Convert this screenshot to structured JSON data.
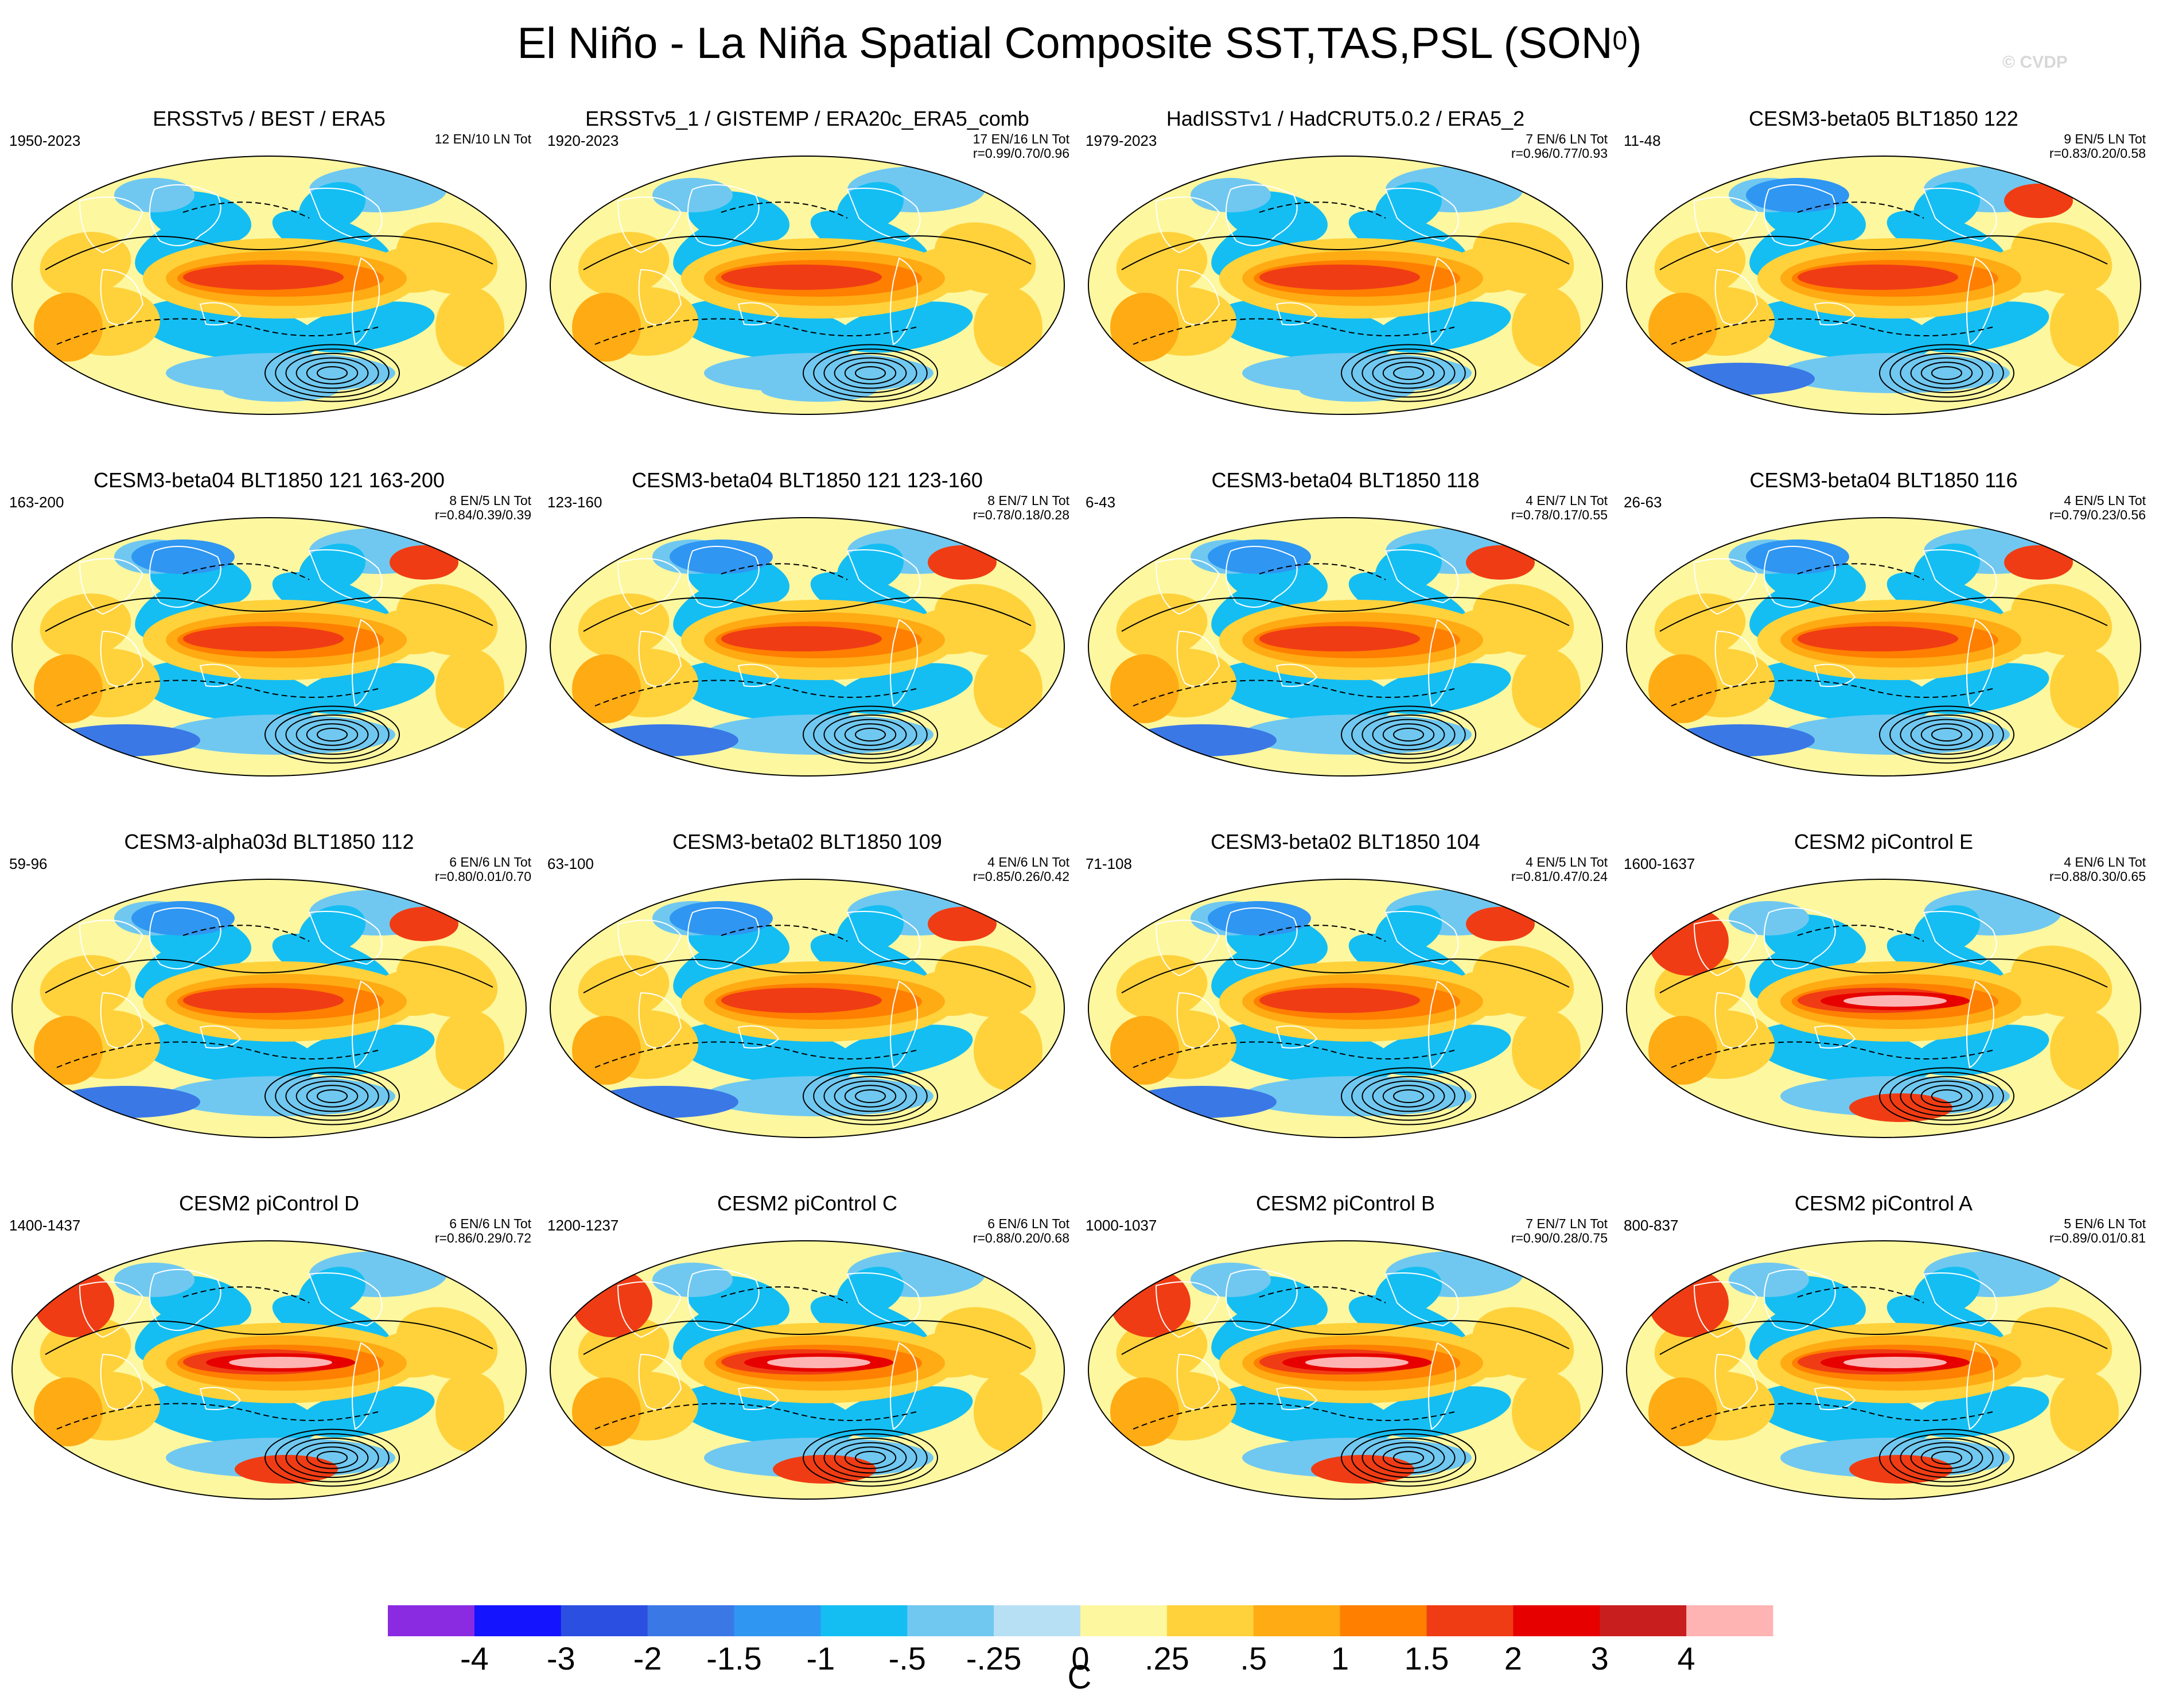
{
  "title": "El Niño - La Niña Spatial Composite SST,TAS,PSL (SON",
  "title_superscript": "0",
  "title_suffix": ")",
  "watermark": "© CVDP",
  "chart_data": {
    "type": "heatmap",
    "description_kind": "global map composite panels (Hammer projection) of temperature anomaly with PSL contours",
    "panels": [
      {
        "title": "ERSSTv5 / BEST / ERA5",
        "years": "1950-2023",
        "stats": [
          "12 EN/10 LN Tot"
        ],
        "style": "obs"
      },
      {
        "title": "ERSSTv5_1 / GISTEMP / ERA20c_ERA5_comb",
        "years": "1920-2023",
        "stats": [
          "17 EN/16 LN Tot",
          "r=0.99/0.70/0.96"
        ],
        "style": "obs"
      },
      {
        "title": "HadISSTv1 / HadCRUT5.0.2 / ERA5_2",
        "years": "1979-2023",
        "stats": [
          "7 EN/6 LN Tot",
          "r=0.96/0.77/0.93"
        ],
        "style": "obs"
      },
      {
        "title": "CESM3-beta05 BLT1850 122",
        "years": "11-48",
        "stats": [
          "9 EN/5 LN Tot",
          "r=0.83/0.20/0.58"
        ],
        "style": "model"
      },
      {
        "title": "CESM3-beta04 BLT1850 121 163-200",
        "years": "163-200",
        "stats": [
          "8 EN/5 LN Tot",
          "r=0.84/0.39/0.39"
        ],
        "style": "model"
      },
      {
        "title": "CESM3-beta04 BLT1850 121 123-160",
        "years": "123-160",
        "stats": [
          "8 EN/7 LN Tot",
          "r=0.78/0.18/0.28"
        ],
        "style": "model"
      },
      {
        "title": "CESM3-beta04 BLT1850 118",
        "years": "6-43",
        "stats": [
          "4 EN/7 LN Tot",
          "r=0.78/0.17/0.55"
        ],
        "style": "model"
      },
      {
        "title": "CESM3-beta04 BLT1850 116",
        "years": "26-63",
        "stats": [
          "4 EN/5 LN Tot",
          "r=0.79/0.23/0.56"
        ],
        "style": "model"
      },
      {
        "title": "CESM3-alpha03d BLT1850 112",
        "years": "59-96",
        "stats": [
          "6 EN/6 LN Tot",
          "r=0.80/0.01/0.70"
        ],
        "style": "model"
      },
      {
        "title": "CESM3-beta02 BLT1850 109",
        "years": "63-100",
        "stats": [
          "4 EN/6 LN Tot",
          "r=0.85/0.26/0.42"
        ],
        "style": "model"
      },
      {
        "title": "CESM3-beta02 BLT1850 104",
        "years": "71-108",
        "stats": [
          "4 EN/5 LN Tot",
          "r=0.81/0.47/0.24"
        ],
        "style": "model"
      },
      {
        "title": "CESM2 piControl E",
        "years": "1600-1637",
        "stats": [
          "4 EN/6 LN Tot",
          "r=0.88/0.30/0.65"
        ],
        "style": "strong"
      },
      {
        "title": "CESM2 piControl D",
        "years": "1400-1437",
        "stats": [
          "6 EN/6 LN Tot",
          "r=0.86/0.29/0.72"
        ],
        "style": "strong"
      },
      {
        "title": "CESM2 piControl C",
        "years": "1200-1237",
        "stats": [
          "6 EN/6 LN Tot",
          "r=0.88/0.20/0.68"
        ],
        "style": "strong"
      },
      {
        "title": "CESM2 piControl B",
        "years": "1000-1037",
        "stats": [
          "7 EN/7 LN Tot",
          "r=0.90/0.28/0.75"
        ],
        "style": "strong"
      },
      {
        "title": "CESM2 piControl A",
        "years": "800-837",
        "stats": [
          "5 EN/6 LN Tot",
          "r=0.89/0.01/0.81"
        ],
        "style": "strong"
      }
    ],
    "colorbar": {
      "levels": [
        "-4",
        "-3",
        "-2",
        "-1.5",
        "-1",
        "-.5",
        "-.25",
        "0",
        ".25",
        ".5",
        "1",
        "1.5",
        "2",
        "3",
        "4"
      ],
      "colors": [
        "#8a2be2",
        "#1414ff",
        "#2b4fe0",
        "#3a78e6",
        "#2f96f2",
        "#14bef2",
        "#70c8f0",
        "#b8e0f4",
        "#fdf7a0",
        "#ffd23c",
        "#ffab14",
        "#ff7f00",
        "#f03c14",
        "#e60000",
        "#c81e1e",
        "#ffb4b4"
      ],
      "unit": "C"
    }
  }
}
